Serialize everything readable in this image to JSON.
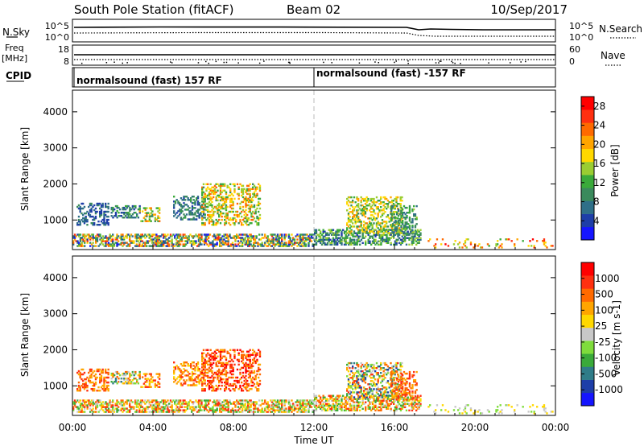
{
  "header": {
    "title": "South Pole Station (fitACF)",
    "beam": "Beam 02",
    "date": "10/Sep/2017"
  },
  "top_panels": {
    "nsky_label": "N.Sky",
    "nsearch_label": "N.Search",
    "nsky_ticks": [
      "10^5",
      "10^0"
    ],
    "nsearch_ticks": [
      "10^5",
      "10^0"
    ],
    "freq_label": [
      "Freq",
      "[MHz]"
    ],
    "freq_ticks": [
      "18",
      "8"
    ],
    "nave_label": "Nave",
    "nave_ticks": [
      "60",
      "0"
    ],
    "cpid_label": "CPID",
    "cpid_segments": [
      {
        "text": "normalsound (fast) 157 RF",
        "start_hour": 0
      },
      {
        "text": "normalsound (fast) -157 RF",
        "start_hour": 12
      }
    ]
  },
  "chart_data": [
    {
      "type": "heatmap",
      "name": "power",
      "xlabel": "Time UT",
      "ylabel": "Slant Range [km]",
      "xticks": [
        "00:00",
        "04:00",
        "08:00",
        "12:00",
        "16:00",
        "20:00",
        "00:00"
      ],
      "xlim_hours": [
        0,
        24
      ],
      "ylim": [
        180,
        4600
      ],
      "yticks": [
        1000,
        2000,
        3000,
        4000
      ],
      "colorbar": {
        "label": "Power [dB]",
        "ticks": [
          "4",
          "8",
          "12",
          "16",
          "20",
          "24",
          "28"
        ],
        "range": [
          0,
          30
        ],
        "colors": [
          "#1515ff",
          "#1e3ea8",
          "#2f6f88",
          "#3a8a5c",
          "#3aaa3a",
          "#9acd32",
          "#ffd800",
          "#ffa500",
          "#ff6a00",
          "#ff3010",
          "#ff0000"
        ]
      },
      "vline_hour": 12,
      "regions": [
        {
          "t0": 0.2,
          "t1": 1.8,
          "r0": 850,
          "r1": 1450,
          "v": [
            3,
            9
          ]
        },
        {
          "t0": 1.9,
          "t1": 3.3,
          "r0": 1050,
          "r1": 1400,
          "v": [
            4,
            12
          ]
        },
        {
          "t0": 3.3,
          "t1": 4.3,
          "r0": 950,
          "r1": 1350,
          "v": [
            8,
            24
          ]
        },
        {
          "t0": 5.0,
          "t1": 6.6,
          "r0": 1000,
          "r1": 1650,
          "v": [
            4,
            12
          ]
        },
        {
          "t0": 6.4,
          "t1": 9.3,
          "r0": 850,
          "r1": 2000,
          "v": [
            10,
            24
          ]
        },
        {
          "t0": 0.0,
          "t1": 12.0,
          "r0": 260,
          "r1": 620,
          "v": [
            2,
            26
          ]
        },
        {
          "t0": 12.0,
          "t1": 17.3,
          "r0": 300,
          "r1": 720,
          "v": [
            4,
            16
          ]
        },
        {
          "t0": 13.6,
          "t1": 16.4,
          "r0": 620,
          "r1": 1650,
          "v": [
            10,
            22
          ]
        },
        {
          "t0": 15.8,
          "t1": 17.1,
          "r0": 600,
          "r1": 1400,
          "v": [
            6,
            14
          ]
        },
        {
          "t0": 17.3,
          "t1": 24.0,
          "r0": 220,
          "r1": 450,
          "v": [
            12,
            28
          ]
        }
      ]
    },
    {
      "type": "heatmap",
      "name": "velocity",
      "xlabel": "Time UT",
      "ylabel": "Slant Range [km]",
      "xticks": [
        "00:00",
        "04:00",
        "08:00",
        "12:00",
        "16:00",
        "20:00",
        "00:00"
      ],
      "xlim_hours": [
        0,
        24
      ],
      "ylim": [
        180,
        4600
      ],
      "yticks": [
        1000,
        2000,
        3000,
        4000
      ],
      "colorbar": {
        "label": "Velocity [m s-1]",
        "ticks": [
          "1000",
          "500",
          "100",
          "25",
          "-25",
          "-100",
          "-500",
          "-1000"
        ],
        "colors": [
          "#1515ff",
          "#1e3ea8",
          "#2f7c88",
          "#3aaa3a",
          "#7fdc3c",
          "#c8c8c8",
          "#ffd800",
          "#ffa500",
          "#ff6a00",
          "#ff3010",
          "#ff0000"
        ]
      },
      "vline_hour": 12,
      "regions": [
        {
          "t0": 0.2,
          "t1": 1.8,
          "r0": 850,
          "r1": 1450,
          "v": [
            7,
            9
          ]
        },
        {
          "t0": 1.9,
          "t1": 3.3,
          "r0": 1050,
          "r1": 1400,
          "v": [
            2,
            8
          ]
        },
        {
          "t0": 3.3,
          "t1": 4.3,
          "r0": 950,
          "r1": 1350,
          "v": [
            6,
            9
          ]
        },
        {
          "t0": 5.0,
          "t1": 6.6,
          "r0": 1000,
          "r1": 1650,
          "v": [
            6,
            9
          ]
        },
        {
          "t0": 6.4,
          "t1": 9.3,
          "r0": 850,
          "r1": 2000,
          "v": [
            7,
            10
          ]
        },
        {
          "t0": 0.0,
          "t1": 12.0,
          "r0": 260,
          "r1": 620,
          "v": [
            3,
            9
          ]
        },
        {
          "t0": 12.0,
          "t1": 17.3,
          "r0": 300,
          "r1": 720,
          "v": [
            3,
            9
          ]
        },
        {
          "t0": 13.6,
          "t1": 16.4,
          "r0": 620,
          "r1": 1650,
          "v": [
            1,
            9
          ]
        },
        {
          "t0": 15.8,
          "t1": 17.1,
          "r0": 600,
          "r1": 1400,
          "v": [
            7,
            9
          ]
        },
        {
          "t0": 17.3,
          "t1": 24.0,
          "r0": 220,
          "r1": 450,
          "v": [
            4,
            6
          ]
        }
      ]
    }
  ]
}
